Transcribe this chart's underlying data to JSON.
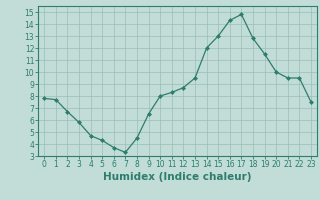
{
  "x": [
    0,
    1,
    2,
    3,
    4,
    5,
    6,
    7,
    8,
    9,
    10,
    11,
    12,
    13,
    14,
    15,
    16,
    17,
    18,
    19,
    20,
    21,
    22,
    23
  ],
  "y": [
    7.8,
    7.7,
    6.7,
    5.8,
    4.7,
    4.3,
    3.7,
    3.3,
    4.5,
    6.5,
    8.0,
    8.3,
    8.7,
    9.5,
    12.0,
    13.0,
    14.3,
    14.8,
    12.8,
    11.5,
    10.0,
    9.5,
    9.5,
    7.5
  ],
  "line_color": "#2e7d6e",
  "marker": "D",
  "marker_size": 2,
  "bg_color": "#c2ddd8",
  "grid_color": "#9bbdb7",
  "xlabel": "Humidex (Indice chaleur)",
  "xlim": [
    -0.5,
    23.5
  ],
  "ylim": [
    3,
    15.5
  ],
  "yticks": [
    3,
    4,
    5,
    6,
    7,
    8,
    9,
    10,
    11,
    12,
    13,
    14,
    15
  ],
  "xticks": [
    0,
    1,
    2,
    3,
    4,
    5,
    6,
    7,
    8,
    9,
    10,
    11,
    12,
    13,
    14,
    15,
    16,
    17,
    18,
    19,
    20,
    21,
    22,
    23
  ],
  "tick_label_size": 5.5,
  "xlabel_fontsize": 7.5
}
